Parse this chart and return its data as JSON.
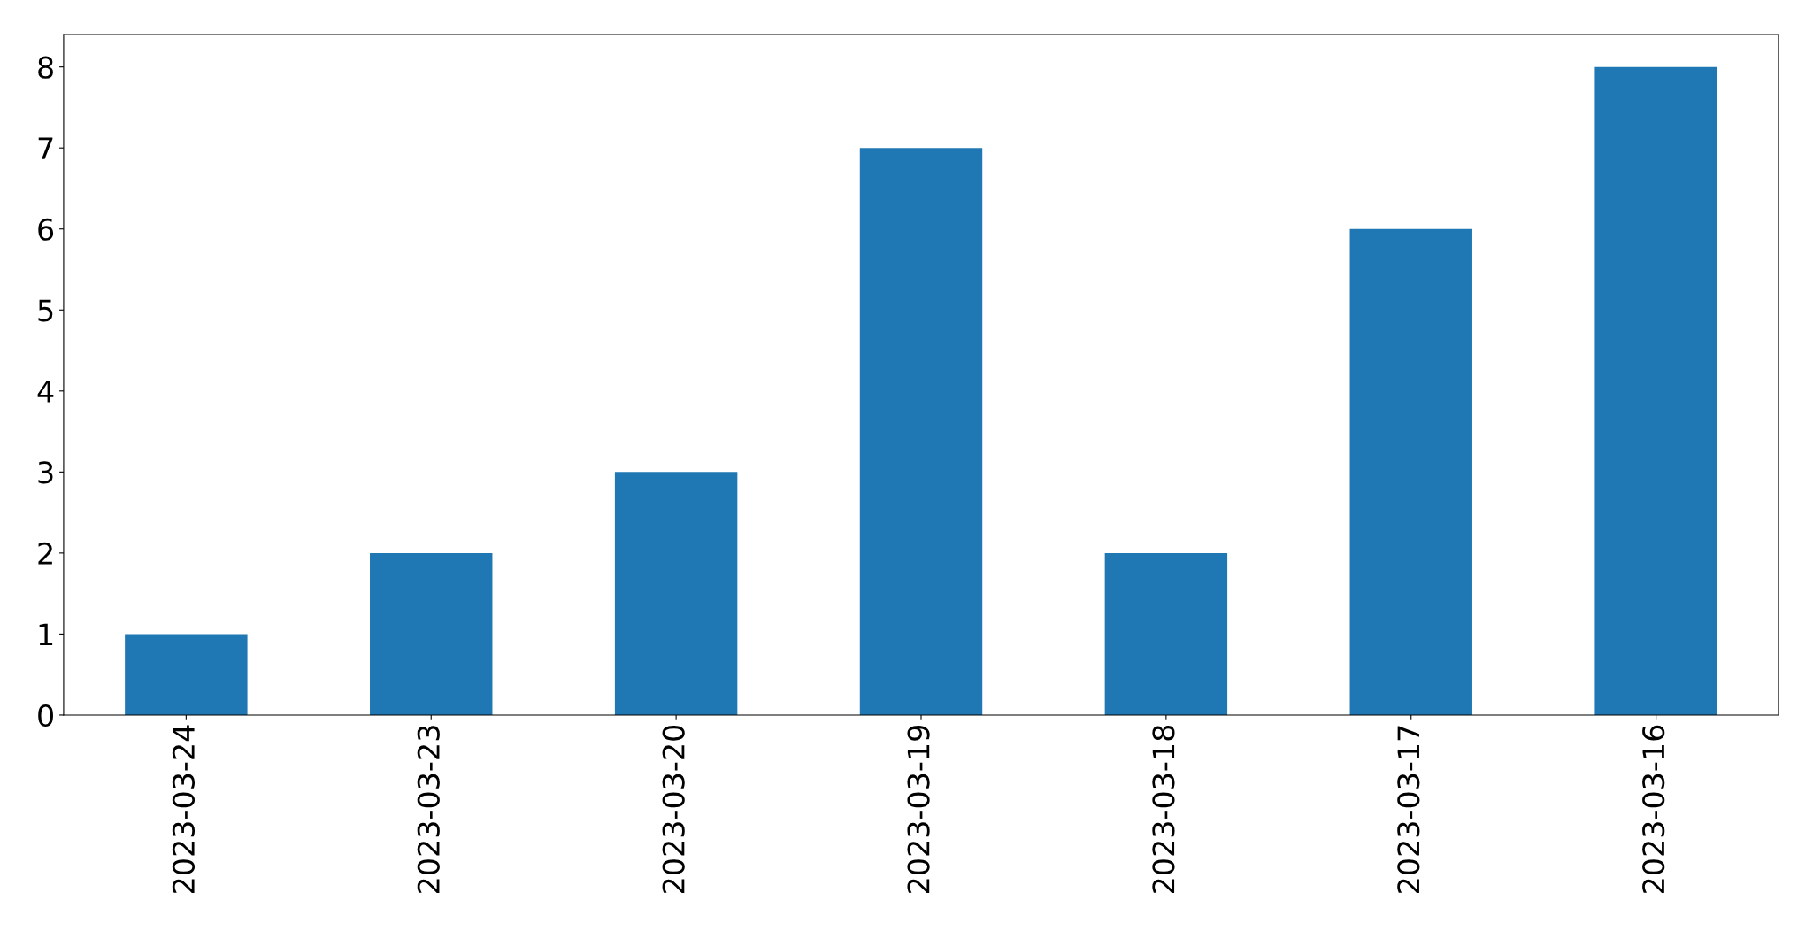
{
  "chart_data": {
    "type": "bar",
    "categories": [
      "2023-03-24",
      "2023-03-23",
      "2023-03-20",
      "2023-03-19",
      "2023-03-18",
      "2023-03-17",
      "2023-03-16"
    ],
    "values": [
      1,
      2,
      3,
      7,
      2,
      6,
      8
    ],
    "color": "#1f77b4",
    "ylim": [
      0,
      8.4
    ],
    "yticks": [
      0,
      1,
      2,
      3,
      4,
      5,
      6,
      7,
      8
    ],
    "grid": false
  }
}
